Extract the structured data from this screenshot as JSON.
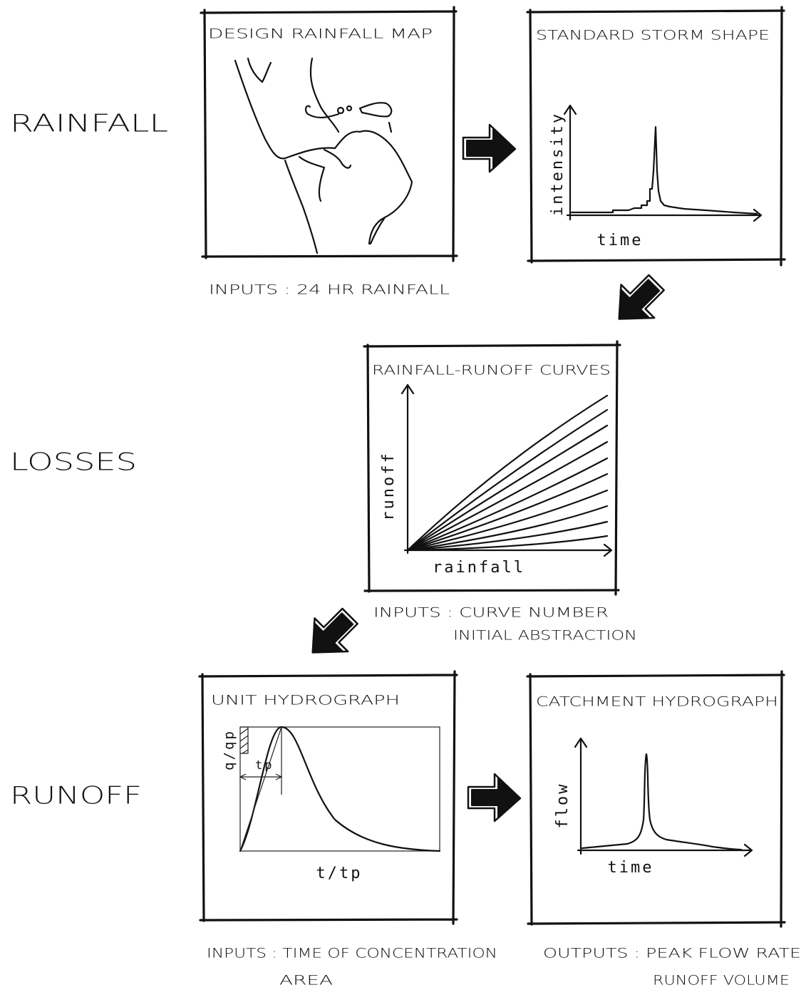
{
  "sections": [
    "RAINFALL",
    "LOSSES",
    "RUNOFF"
  ],
  "panels": [
    {
      "title": "DESIGN RAINFALL MAP"
    },
    {
      "title": "STANDARD STORM SHAPE",
      "y_label": "intensity",
      "x_label": "time"
    },
    {
      "title": "RAINFALL-RUNOFF CURVES",
      "y_label": "runoff",
      "x_label": "rainfall"
    },
    {
      "title": "UNIT HYDROGRAPH",
      "y_label": "q/qp",
      "marker_label": "tp",
      "x_label": "t/tp"
    },
    {
      "title": "CATCHMENT HYDROGRAPH",
      "y_label": "flow",
      "x_label": "time"
    }
  ],
  "notes": [
    {
      "lines": [
        "INPUTS : 24 HR RAINFALL"
      ]
    },
    {
      "lines": [
        "INPUTS : CURVE NUMBER",
        "INITIAL ABSTRACTION"
      ]
    },
    {
      "lines": [
        "INPUTS : TIME OF CONCENTRATION",
        "AREA"
      ]
    },
    {
      "lines": [
        "OUTPUTS : PEAK FLOW RATE",
        "RUNOFF VOLUME"
      ]
    }
  ]
}
